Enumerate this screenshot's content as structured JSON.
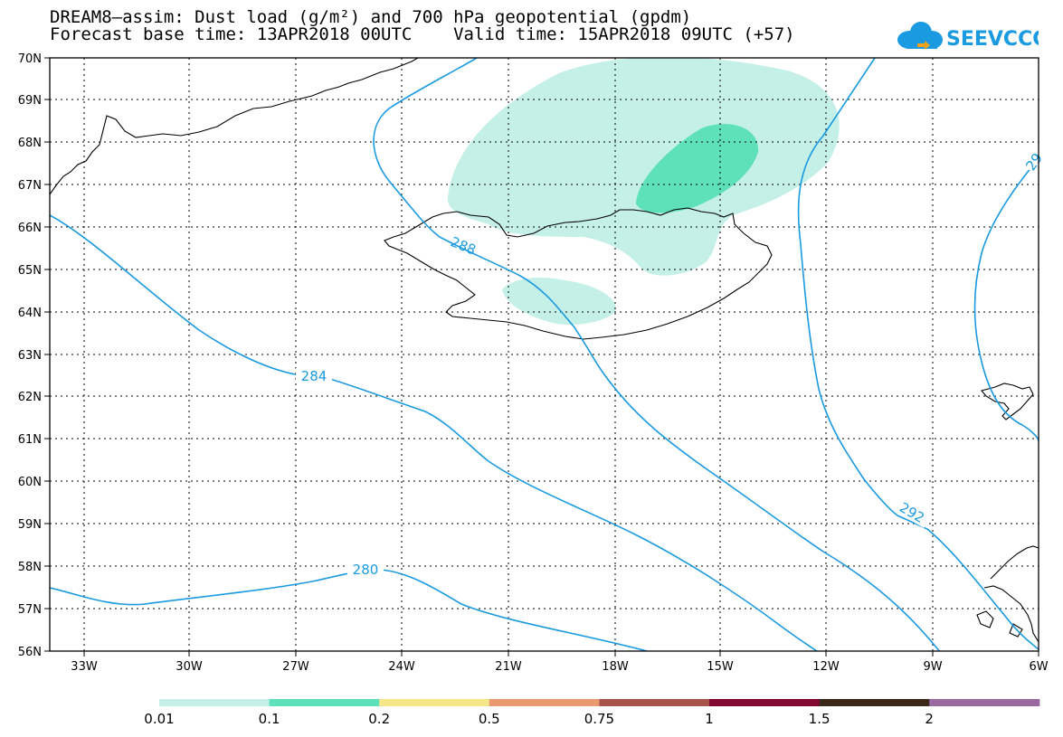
{
  "title_line1": "DREAM8–assim: Dust load (g/m²) and 700 hPa geopotential (gpdm)",
  "title_line2": "Forecast base time: 13APR2018 00UTC    Valid time: 15APR2018 09UTC (+57)",
  "logo_text": "SEEVCCC",
  "lat_labels": [
    "70N",
    "69N",
    "68N",
    "67N",
    "66N",
    "65N",
    "64N",
    "63N",
    "62N",
    "61N",
    "60N",
    "59N",
    "58N",
    "57N",
    "56N"
  ],
  "lon_labels": [
    "33W",
    "30W",
    "27W",
    "24W",
    "21W",
    "18W",
    "15W",
    "12W",
    "9W",
    "6W"
  ],
  "contour_labels": {
    "c280": "280",
    "c284": "284",
    "c288": "288",
    "c292": "292",
    "c296": "29"
  },
  "legend": {
    "colors": [
      "#c4f0e8",
      "#5ee0b8",
      "#f5e68a",
      "#ea9a72",
      "#a8544c",
      "#820a30",
      "#3c2818",
      "#9a6aa0"
    ],
    "labels": [
      "0.01",
      "0.1",
      "0.2",
      "0.5",
      "0.75",
      "1",
      "1.5",
      "2"
    ]
  },
  "colors": {
    "contour": "#1a9ae0",
    "dust_low": "#c4f0e8",
    "dust_mid": "#5ee0b8"
  }
}
